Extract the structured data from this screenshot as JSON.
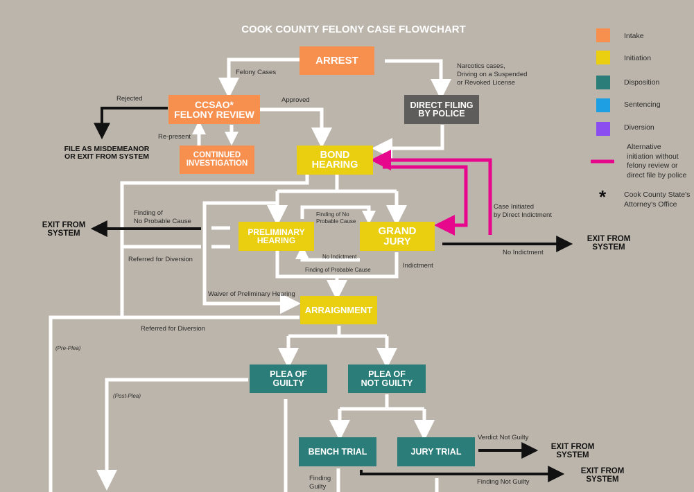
{
  "title": "COOK COUNTY FELONY CASE FLOWCHART",
  "legend": {
    "items": [
      {
        "label": "Intake",
        "color": "#f78f4f"
      },
      {
        "label": "Initiation",
        "color": "#e9cf0f"
      },
      {
        "label": "Disposition",
        "color": "#2a7d78"
      },
      {
        "label": "Sentencing",
        "color": "#1f9fe3"
      },
      {
        "label": "Diversion",
        "color": "#8c4df0"
      }
    ],
    "alt_initiation": "Alternative\ninitiation without\nfelony review or\ndirect file by police",
    "alt_color": "#e6078d",
    "asterisk": "*",
    "ccsao_note": "Cook County State's\nAttorney's Office"
  },
  "boxes": {
    "arrest": "ARREST",
    "felony_review": "CCSAO*\nFELONY REVIEW",
    "direct_filing": "DIRECT FILING\nBY POLICE",
    "continued_investigation": "CONTINUED\nINVESTIGATION",
    "bond_hearing": "BOND\nHEARING",
    "preliminary_hearing": "PRELIMINARY\nHEARING",
    "grand_jury": "GRAND\nJURY",
    "arraignment": "ARRAIGNMENT",
    "plea_guilty": "PLEA  OF\nGUILTY",
    "plea_not_guilty": "PLEA  OF\nNOT GUILTY",
    "bench_trial": "BENCH TRIAL",
    "jury_trial": "JURY TRIAL"
  },
  "labels": {
    "felony_cases": "Felony Cases",
    "narcotics": "Narcotics cases,\nDriving on a Suspended\n or Revoked License",
    "rejected": "Rejected",
    "approved": "Approved",
    "represent": "Re-present",
    "file_misdemeanor": "FILE AS MISDEMEANOR\nOR EXIT FROM SYSTEM",
    "finding_no_pc_left": "Finding of\nNo Probable Cause",
    "finding_no_pc_mid": "Finding of No\nProbable Cause",
    "case_initiated": "Case Initiated\nby Direct Indictment",
    "referred_diversion_1": "Referred for Diversion",
    "no_indictment_inner": "No Indictment",
    "finding_pc": "Finding of Probable Cause",
    "indictment": "Indictment",
    "no_indictment_right": "No Indictment",
    "waiver": "Waiver of Preliminary Hearing",
    "referred_diversion_2": "Referred for Diversion",
    "pre_plea": "(Pre-Plea)",
    "post_plea": "(Post-Plea)",
    "verdict_not_guilty": "Verdict Not Guilty",
    "finding_guilty": "Finding\nGuilty",
    "finding_not_guilty": "Finding  Not  Guilty"
  },
  "exits": {
    "exit_left": "EXIT FROM\nSYSTEM",
    "exit_grand_jury": "EXIT FROM\nSYSTEM",
    "exit_jury_trial": "EXIT FROM\nSYSTEM",
    "exit_bench_trial": "EXIT FROM\nSYSTEM"
  }
}
